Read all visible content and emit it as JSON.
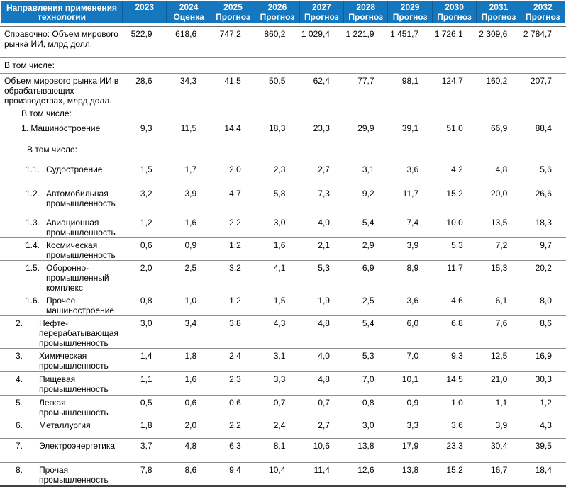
{
  "colors": {
    "header_bg": "#1577BE",
    "header_text": "#ffffff",
    "row_rule": "#8f8f8f",
    "header_rule": "#6d6d6d",
    "bottom_rule": "#3c434b",
    "body_text": "#000000"
  },
  "table": {
    "header": {
      "first_col": "Направления применения технологии",
      "columns": [
        {
          "year": "2023",
          "sub": ""
        },
        {
          "year": "2024",
          "sub": "Оценка"
        },
        {
          "year": "2025",
          "sub": "Прогноз"
        },
        {
          "year": "2026",
          "sub": "Прогноз"
        },
        {
          "year": "2027",
          "sub": "Прогноз"
        },
        {
          "year": "2028",
          "sub": "Прогноз"
        },
        {
          "year": "2029",
          "sub": "Прогноз"
        },
        {
          "year": "2030",
          "sub": "Прогноз"
        },
        {
          "year": "2031",
          "sub": "Прогноз"
        },
        {
          "year": "2032",
          "sub": "Прогноз"
        }
      ]
    },
    "rows": [
      {
        "num": "",
        "label": "Справочно: Объем мирового рынка ИИ, млрд долл.",
        "level": "p0",
        "values": [
          "522,9",
          "618,6",
          "747,2",
          "860,2",
          "1 029,4",
          "1 221,9",
          "1 451,7",
          "1 726,1",
          "2 309,6",
          "2 784,7"
        ]
      },
      {
        "num": "",
        "label": "В том числе:",
        "level": "p0",
        "values": []
      },
      {
        "num": "",
        "label": "Объем мирового рынка ИИ в обрабатывающих производствах, млрд долл.",
        "level": "p0",
        "values": [
          "28,6",
          "34,3",
          "41,5",
          "50,5",
          "62,4",
          "77,7",
          "98,1",
          "124,7",
          "160,2",
          "207,7"
        ]
      },
      {
        "num": "",
        "label": "В том числе:",
        "level": "p1",
        "values": []
      },
      {
        "num": "",
        "label": "1. Машиностроение",
        "level": "p1",
        "values": [
          "9,3",
          "11,5",
          "14,4",
          "18,3",
          "23,3",
          "29,9",
          "39,1",
          "51,0",
          "66,9",
          "88,4"
        ]
      },
      {
        "num": "",
        "label": "В том числе:",
        "level": "p2",
        "values": []
      },
      {
        "num": "1.1.",
        "label": "Судостроение",
        "level": "nsub",
        "values": [
          "1,5",
          "1,7",
          "2,0",
          "2,3",
          "2,7",
          "3,1",
          "3,6",
          "4,2",
          "4,8",
          "5,6"
        ]
      },
      {
        "num": "1.2.",
        "label": "Автомобильная промышленность",
        "level": "nsub",
        "values": [
          "3,2",
          "3,9",
          "4,7",
          "5,8",
          "7,3",
          "9,2",
          "11,7",
          "15,2",
          "20,0",
          "26,6"
        ]
      },
      {
        "num": "1.3.",
        "label": "Авиационная промышленность",
        "level": "nsub",
        "values": [
          "1,2",
          "1,6",
          "2,2",
          "3,0",
          "4,0",
          "5,4",
          "7,4",
          "10,0",
          "13,5",
          "18,3"
        ]
      },
      {
        "num": "1.4.",
        "label": "Космическая промышленность",
        "level": "nsub",
        "values": [
          "0,6",
          "0,9",
          "1,2",
          "1,6",
          "2,1",
          "2,9",
          "3,9",
          "5,3",
          "7,2",
          "9,7"
        ]
      },
      {
        "num": "1.5.",
        "label": "Оборонно-промышленный комплекс",
        "level": "nsub",
        "values": [
          "2,0",
          "2,5",
          "3,2",
          "4,1",
          "5,3",
          "6,9",
          "8,9",
          "11,7",
          "15,3",
          "20,2"
        ]
      },
      {
        "num": "1.6.",
        "label": "Прочее машиностроение",
        "level": "nsub",
        "values": [
          "0,8",
          "1,0",
          "1,2",
          "1,5",
          "1,9",
          "2,5",
          "3,6",
          "4,6",
          "6,1",
          "8,0"
        ]
      },
      {
        "num": "2.",
        "label": "Нефте-перерабатывающая промышленность",
        "level": "nmain",
        "values": [
          "3,0",
          "3,4",
          "3,8",
          "4,3",
          "4,8",
          "5,4",
          "6,0",
          "6,8",
          "7,6",
          "8,6"
        ]
      },
      {
        "num": "3.",
        "label": "Химическая промышленность",
        "level": "nmain",
        "values": [
          "1,4",
          "1,8",
          "2,4",
          "3,1",
          "4,0",
          "5,3",
          "7,0",
          "9,3",
          "12,5",
          "16,9"
        ]
      },
      {
        "num": "4.",
        "label": "Пищевая промышленность",
        "level": "nmain",
        "values": [
          "1,1",
          "1,6",
          "2,3",
          "3,3",
          "4,8",
          "7,0",
          "10,1",
          "14,5",
          "21,0",
          "30,3"
        ]
      },
      {
        "num": "5.",
        "label": "Легкая промышленность",
        "level": "nmain",
        "values": [
          "0,5",
          "0,6",
          "0,6",
          "0,7",
          "0,7",
          "0,8",
          "0,9",
          "1,0",
          "1,1",
          "1,2"
        ]
      },
      {
        "num": "6.",
        "label": "Металлургия",
        "level": "nmain",
        "values": [
          "1,8",
          "2,0",
          "2,2",
          "2,4",
          "2,7",
          "3,0",
          "3,3",
          "3,6",
          "3,9",
          "4,3"
        ]
      },
      {
        "num": "7.",
        "label": "Электроэнергетика",
        "level": "nmain",
        "values": [
          "3,7",
          "4,8",
          "6,3",
          "8,1",
          "10,6",
          "13,8",
          "17,9",
          "23,3",
          "30,4",
          "39,5"
        ]
      },
      {
        "num": "8.",
        "label": "Прочая промышленность",
        "level": "nmain",
        "values": [
          "7,8",
          "8,6",
          "9,4",
          "10,4",
          "11,4",
          "12,6",
          "13,8",
          "15,2",
          "16,7",
          "18,4"
        ]
      }
    ]
  }
}
